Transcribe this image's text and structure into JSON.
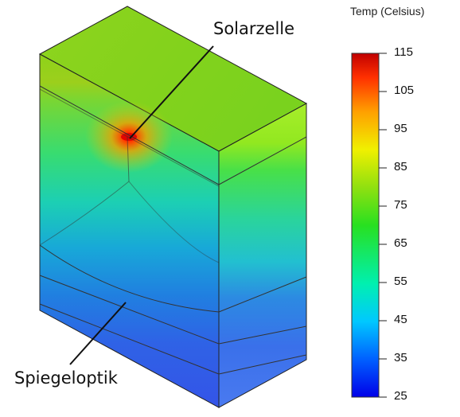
{
  "labels": {
    "cell": "Solarzelle",
    "mirror": "Spiegeloptik"
  },
  "legend": {
    "title": "Temp (Celsius)",
    "ticks": [
      "115",
      "105",
      "95",
      "85",
      "75",
      "65",
      "55",
      "45",
      "35",
      "25"
    ],
    "range": [
      25,
      115
    ],
    "colors": [
      "#0000e8",
      "#0060ff",
      "#00c8ff",
      "#00f0b0",
      "#28e020",
      "#90e010",
      "#f0f000",
      "#ffa000",
      "#ff3000",
      "#c00000"
    ]
  }
}
